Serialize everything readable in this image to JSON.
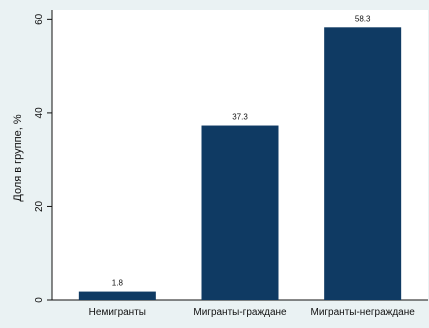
{
  "chart_data": {
    "type": "bar",
    "categories": [
      "Немигранты",
      "Мигранты-граждане",
      "Мигранты-неграждане"
    ],
    "values": [
      1.8,
      37.3,
      58.3
    ],
    "value_labels": [
      "1.8",
      "37.3",
      "58.3"
    ],
    "title": "",
    "xlabel": "",
    "ylabel": "Доля в группе, %",
    "ylim": [
      0,
      62
    ],
    "yticks": [
      0,
      20,
      40,
      60
    ],
    "grid": false,
    "legend": "none",
    "colors": {
      "bar": "#0f3a63",
      "plot_background": "#ffffff",
      "outer_background": "#eaf2f3",
      "axis": "#111111"
    }
  }
}
